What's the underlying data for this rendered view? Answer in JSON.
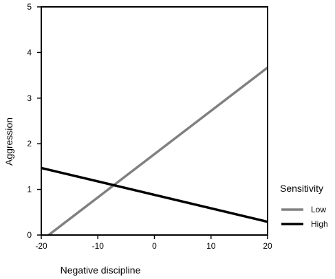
{
  "chart_data": {
    "type": "line",
    "title": "",
    "xlabel": "Negative discipline",
    "ylabel": "Aggression",
    "xlim": [
      -20,
      20
    ],
    "ylim": [
      0,
      5
    ],
    "x_ticks": [
      -20,
      -10,
      0,
      10,
      20
    ],
    "y_ticks": [
      0,
      1,
      2,
      3,
      4,
      5
    ],
    "grid": false,
    "legend": {
      "title": "Sensitivity",
      "placement": "right"
    },
    "series": [
      {
        "name": "Low",
        "color": "#808080",
        "x": [
          -18.7,
          20
        ],
        "y": [
          0,
          3.67
        ]
      },
      {
        "name": "High",
        "color": "#000000",
        "x": [
          -20,
          20
        ],
        "y": [
          1.47,
          0.29
        ]
      }
    ]
  }
}
